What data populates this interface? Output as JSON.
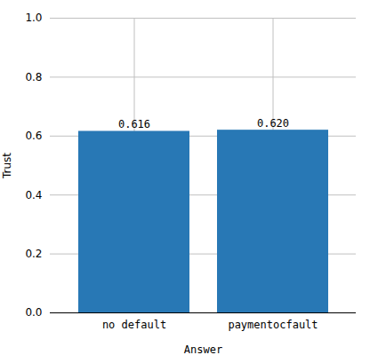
{
  "chart_data": {
    "type": "bar",
    "categories": [
      "no default",
      "paymentocfault"
    ],
    "values": [
      0.616,
      0.62
    ],
    "value_labels": [
      "0.616",
      "0.620"
    ],
    "data_labels": true,
    "color": "#2878b5",
    "xlabel": "Answer",
    "ylabel": "Trust",
    "ylim": [
      0.0,
      1.0
    ],
    "yticks": [
      {
        "value": 0,
        "label": "0.0"
      },
      0.2,
      0.4,
      0.6,
      0.8,
      {
        "value": 1,
        "label": "1.0"
      }
    ],
    "grid": true
  }
}
